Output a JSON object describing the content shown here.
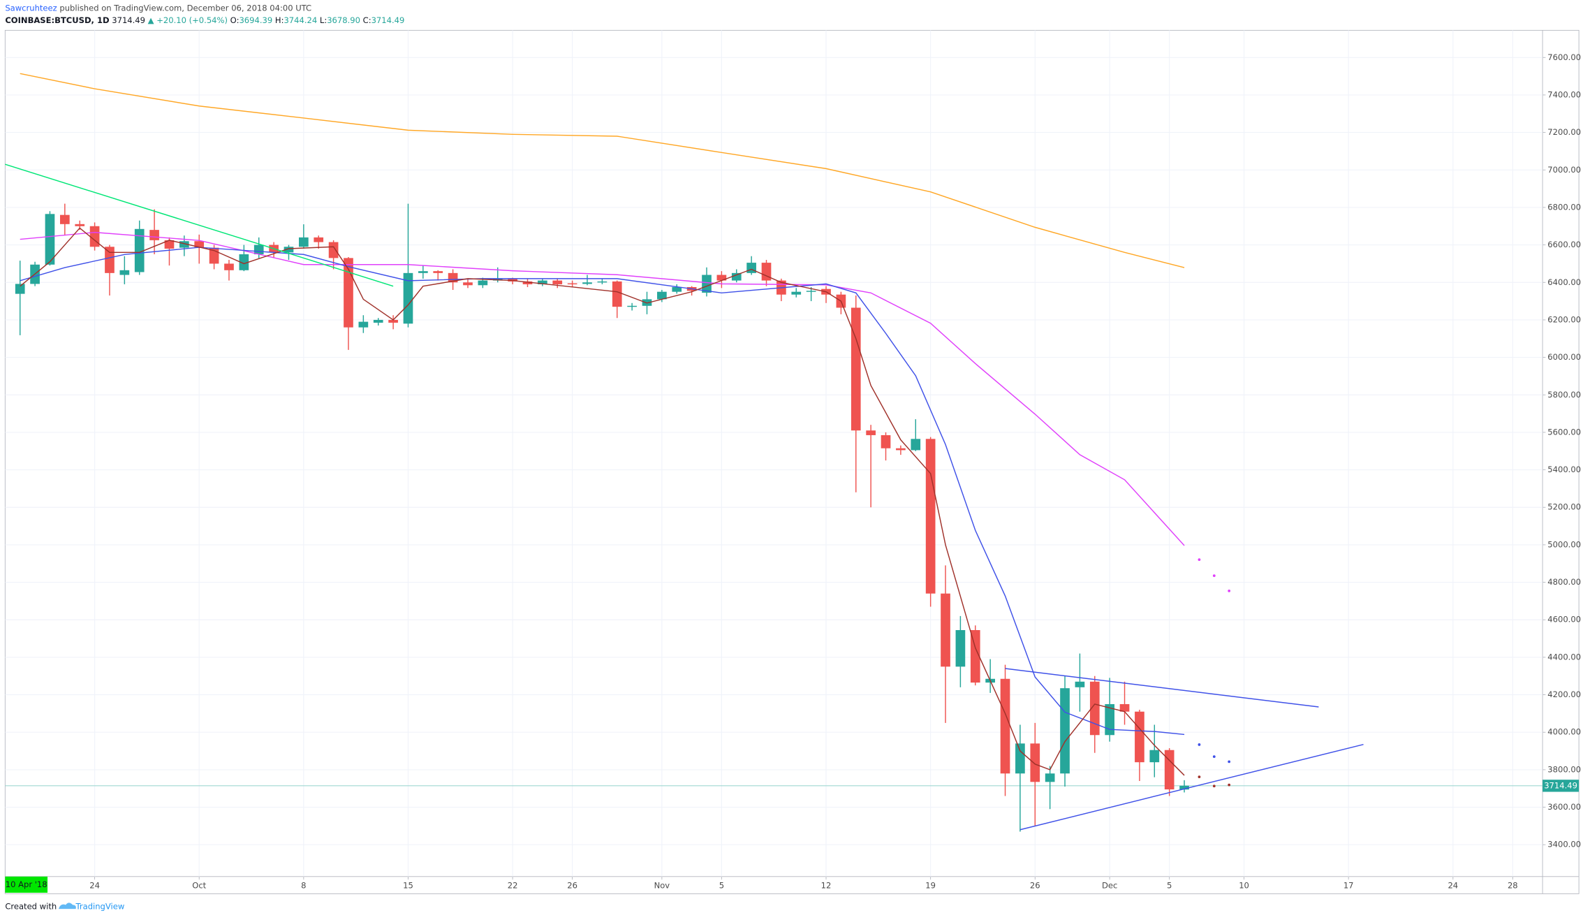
{
  "header": {
    "author": "Sawcruhteez",
    "published": "published on TradingView.com, December 06, 2018 04:00 UTC",
    "symbol": "COINBASE:BTCUSD, 1D",
    "last": "3714.49",
    "change": "▲ +20.10 (+0.54%)",
    "ohlc": [
      {
        "label": "O:",
        "value": "3694.39"
      },
      {
        "label": "H:",
        "value": "3744.24"
      },
      {
        "label": "L:",
        "value": "3678.90"
      },
      {
        "label": "C:",
        "value": "3714.49"
      }
    ]
  },
  "footer": {
    "created_with": "Created with",
    "brand": "TradingView"
  },
  "chart_data": {
    "type": "candlestick",
    "range_start_label": "10 Apr '18",
    "up_color": "#26a69a",
    "down_color": "#ef5350",
    "grid": true,
    "xlim": [
      "2018-09-18",
      "2018-12-30"
    ],
    "xticks": [
      {
        "value": "2018-09-24",
        "label": "24"
      },
      {
        "value": "2018-10-01",
        "label": "Oct"
      },
      {
        "value": "2018-10-08",
        "label": "8"
      },
      {
        "value": "2018-10-15",
        "label": "15"
      },
      {
        "value": "2018-10-22",
        "label": "22"
      },
      {
        "value": "2018-10-26",
        "label": "26"
      },
      {
        "value": "2018-11-01",
        "label": "Nov"
      },
      {
        "value": "2018-11-05",
        "label": "5"
      },
      {
        "value": "2018-11-12",
        "label": "12"
      },
      {
        "value": "2018-11-19",
        "label": "19"
      },
      {
        "value": "2018-11-26",
        "label": "26"
      },
      {
        "value": "2018-12-01",
        "label": "Dec"
      },
      {
        "value": "2018-12-05",
        "label": "5"
      },
      {
        "value": "2018-12-10",
        "label": "10"
      },
      {
        "value": "2018-12-17",
        "label": "17"
      },
      {
        "value": "2018-12-24",
        "label": "24"
      },
      {
        "value": "2018-12-28",
        "label": "28"
      }
    ],
    "ylim": [
      3230,
      7745
    ],
    "yticks": [
      {
        "value": 3400,
        "label": "3400.00"
      },
      {
        "value": 3600,
        "label": "3600.00"
      },
      {
        "value": 3800,
        "label": "3800.00"
      },
      {
        "value": 4000,
        "label": "4000.00"
      },
      {
        "value": 4200,
        "label": "4200.00"
      },
      {
        "value": 4400,
        "label": "4400.00"
      },
      {
        "value": 4600,
        "label": "4600.00"
      },
      {
        "value": 4800,
        "label": "4800.00"
      },
      {
        "value": 5000,
        "label": "5000.00"
      },
      {
        "value": 5200,
        "label": "5200.00"
      },
      {
        "value": 5400,
        "label": "5400.00"
      },
      {
        "value": 5600,
        "label": "5600.00"
      },
      {
        "value": 5800,
        "label": "5800.00"
      },
      {
        "value": 6000,
        "label": "6000.00"
      },
      {
        "value": 6200,
        "label": "6200.00"
      },
      {
        "value": 6400,
        "label": "6400.00"
      },
      {
        "value": 6600,
        "label": "6600.00"
      },
      {
        "value": 6800,
        "label": "6800.00"
      },
      {
        "value": 7000,
        "label": "7000.00"
      },
      {
        "value": 7200,
        "label": "7200.00"
      },
      {
        "value": 7400,
        "label": "7400.00"
      },
      {
        "value": 7600,
        "label": "7600.00"
      }
    ],
    "x": [
      "2018-09-19",
      "2018-09-20",
      "2018-09-21",
      "2018-09-22",
      "2018-09-23",
      "2018-09-24",
      "2018-09-25",
      "2018-09-26",
      "2018-09-27",
      "2018-09-28",
      "2018-09-29",
      "2018-09-30",
      "2018-10-01",
      "2018-10-02",
      "2018-10-03",
      "2018-10-04",
      "2018-10-05",
      "2018-10-06",
      "2018-10-07",
      "2018-10-08",
      "2018-10-09",
      "2018-10-10",
      "2018-10-11",
      "2018-10-12",
      "2018-10-13",
      "2018-10-14",
      "2018-10-15",
      "2018-10-16",
      "2018-10-17",
      "2018-10-18",
      "2018-10-19",
      "2018-10-20",
      "2018-10-21",
      "2018-10-22",
      "2018-10-23",
      "2018-10-24",
      "2018-10-25",
      "2018-10-26",
      "2018-10-27",
      "2018-10-28",
      "2018-10-29",
      "2018-10-30",
      "2018-10-31",
      "2018-11-01",
      "2018-11-02",
      "2018-11-03",
      "2018-11-04",
      "2018-11-05",
      "2018-11-06",
      "2018-11-07",
      "2018-11-08",
      "2018-11-09",
      "2018-11-10",
      "2018-11-11",
      "2018-11-12",
      "2018-11-13",
      "2018-11-14",
      "2018-11-15",
      "2018-11-16",
      "2018-11-17",
      "2018-11-18",
      "2018-11-19",
      "2018-11-20",
      "2018-11-21",
      "2018-11-22",
      "2018-11-23",
      "2018-11-24",
      "2018-11-25",
      "2018-11-26",
      "2018-11-27",
      "2018-11-28",
      "2018-11-29",
      "2018-11-30",
      "2018-12-01",
      "2018-12-02",
      "2018-12-03",
      "2018-12-04",
      "2018-12-05",
      "2018-12-06"
    ],
    "open": [
      6339,
      6392,
      6495,
      6760,
      6711,
      6700,
      6590,
      6440,
      6455,
      6680,
      6625,
      6585,
      6620,
      6585,
      6500,
      6465,
      6550,
      6600,
      6560,
      6590,
      6640,
      6615,
      6530,
      6160,
      6185,
      6200,
      6180,
      6450,
      6460,
      6450,
      6400,
      6385,
      6410,
      6420,
      6405,
      6390,
      6410,
      6395,
      6392,
      6400,
      6405,
      6270,
      6275,
      6310,
      6350,
      6375,
      6345,
      6440,
      6410,
      6450,
      6505,
      6410,
      6335,
      6350,
      6365,
      6335,
      6265,
      5610,
      5585,
      5515,
      5505,
      5565,
      4740,
      4350,
      4545,
      4265,
      4285,
      3780,
      3940,
      3735,
      3780,
      4240,
      4270,
      3985,
      4150,
      4110,
      3840,
      3905,
      3694.39
    ],
    "high": [
      6516,
      6510,
      6780,
      6820,
      6730,
      6720,
      6600,
      6540,
      6730,
      6790,
      6640,
      6650,
      6655,
      6600,
      6520,
      6600,
      6640,
      6615,
      6600,
      6710,
      6650,
      6625,
      6535,
      6225,
      6210,
      6225,
      6820,
      6490,
      6465,
      6470,
      6420,
      6425,
      6480,
      6425,
      6420,
      6420,
      6420,
      6410,
      6440,
      6420,
      6410,
      6290,
      6350,
      6360,
      6390,
      6380,
      6480,
      6460,
      6470,
      6540,
      6520,
      6420,
      6370,
      6375,
      6380,
      6350,
      6330,
      5640,
      5600,
      5530,
      5670,
      5575,
      4890,
      4620,
      4570,
      4390,
      4360,
      4040,
      4050,
      3820,
      4300,
      4420,
      4300,
      4290,
      4270,
      4120,
      4040,
      3915,
      3744.24
    ],
    "low": [
      6118,
      6380,
      6490,
      6650,
      6680,
      6570,
      6330,
      6390,
      6440,
      6550,
      6490,
      6540,
      6500,
      6470,
      6410,
      6460,
      6530,
      6530,
      6520,
      6580,
      6580,
      6470,
      6040,
      6130,
      6170,
      6150,
      6160,
      6420,
      6410,
      6360,
      6370,
      6370,
      6400,
      6390,
      6375,
      6380,
      6370,
      6375,
      6385,
      6390,
      6210,
      6250,
      6230,
      6295,
      6340,
      6330,
      6325,
      6370,
      6400,
      6440,
      6380,
      6300,
      6320,
      6300,
      6290,
      6230,
      5280,
      5200,
      5450,
      5480,
      5500,
      4670,
      4050,
      4240,
      4250,
      4210,
      3660,
      3470,
      3500,
      3590,
      3710,
      4110,
      3890,
      3950,
      4040,
      3740,
      3760,
      3660,
      3678.9
    ],
    "close": [
      6392,
      6495,
      6765,
      6711,
      6700,
      6590,
      6450,
      6465,
      6685,
      6625,
      6580,
      6620,
      6585,
      6500,
      6465,
      6550,
      6600,
      6560,
      6590,
      6640,
      6615,
      6530,
      6160,
      6190,
      6200,
      6185,
      6450,
      6460,
      6450,
      6400,
      6385,
      6410,
      6420,
      6405,
      6390,
      6410,
      6390,
      6390,
      6400,
      6405,
      6270,
      6275,
      6310,
      6350,
      6375,
      6355,
      6440,
      6410,
      6450,
      6505,
      6410,
      6335,
      6350,
      6355,
      6335,
      6265,
      5610,
      5585,
      5515,
      5505,
      5565,
      4740,
      4350,
      4545,
      4265,
      4285,
      3780,
      3940,
      3735,
      3780,
      4235,
      4270,
      3985,
      4150,
      4110,
      3840,
      3905,
      3695,
      3714.49
    ],
    "overlays": [
      {
        "style": "line",
        "color": "#ffa726",
        "x": [
          "2018-09-19",
          "2018-09-24",
          "2018-10-01",
          "2018-10-08",
          "2018-10-15",
          "2018-10-22",
          "2018-10-29",
          "2018-11-05",
          "2018-11-12",
          "2018-11-19",
          "2018-11-26",
          "2018-12-02",
          "2018-12-06"
        ],
        "values": [
          7514,
          7433,
          7341,
          7277,
          7212,
          7190,
          7180,
          7093,
          7007,
          6883,
          6694,
          6560,
          6479
        ]
      },
      {
        "style": "line",
        "color": "#e040fb",
        "x": [
          "2018-09-19",
          "2018-09-24",
          "2018-10-01",
          "2018-10-08",
          "2018-10-15",
          "2018-10-22",
          "2018-10-29",
          "2018-11-05",
          "2018-11-12",
          "2018-11-15",
          "2018-11-19",
          "2018-11-22",
          "2018-11-26",
          "2018-11-29",
          "2018-12-02",
          "2018-12-06"
        ],
        "values": [
          6630,
          6667,
          6624,
          6495,
          6495,
          6462,
          6441,
          6392,
          6387,
          6344,
          6182,
          5967,
          5697,
          5481,
          5347,
          4996
        ]
      },
      {
        "style": "line",
        "color": "#3f51e8",
        "x": [
          "2018-09-19",
          "2018-09-22",
          "2018-09-26",
          "2018-10-01",
          "2018-10-08",
          "2018-10-11",
          "2018-10-15",
          "2018-10-20",
          "2018-10-29",
          "2018-11-05",
          "2018-11-12",
          "2018-11-14",
          "2018-11-16",
          "2018-11-18",
          "2018-11-20",
          "2018-11-22",
          "2018-11-24",
          "2018-11-26",
          "2018-11-28",
          "2018-12-01",
          "2018-12-04",
          "2018-12-06"
        ],
        "values": [
          6409,
          6479,
          6549,
          6587,
          6549,
          6484,
          6409,
          6420,
          6420,
          6344,
          6392,
          6344,
          6128,
          5902,
          5535,
          5077,
          4727,
          4295,
          4107,
          4015,
          4004,
          3988
        ]
      },
      {
        "style": "line",
        "color": "#a0312a",
        "x": [
          "2018-09-19",
          "2018-09-21",
          "2018-09-23",
          "2018-09-25",
          "2018-09-27",
          "2018-09-29",
          "2018-10-02",
          "2018-10-04",
          "2018-10-07",
          "2018-10-10",
          "2018-10-11",
          "2018-10-12",
          "2018-10-14",
          "2018-10-15",
          "2018-10-16",
          "2018-10-19",
          "2018-10-22",
          "2018-10-29",
          "2018-10-31",
          "2018-11-03",
          "2018-11-07",
          "2018-11-09",
          "2018-11-12",
          "2018-11-13",
          "2018-11-14",
          "2018-11-15",
          "2018-11-17",
          "2018-11-19",
          "2018-11-20",
          "2018-11-22",
          "2018-11-24",
          "2018-11-25",
          "2018-11-26",
          "2018-11-27",
          "2018-11-28",
          "2018-11-30",
          "2018-12-02",
          "2018-12-04",
          "2018-12-06"
        ],
        "values": [
          6380,
          6510,
          6690,
          6560,
          6560,
          6625,
          6570,
          6500,
          6580,
          6590,
          6470,
          6310,
          6200,
          6280,
          6380,
          6420,
          6410,
          6350,
          6290,
          6350,
          6470,
          6400,
          6350,
          6300,
          6100,
          5850,
          5560,
          5380,
          5000,
          4450,
          4100,
          3900,
          3830,
          3800,
          3950,
          4150,
          4110,
          3930,
          3770
        ]
      },
      {
        "style": "line",
        "color": "#00e676",
        "x": [
          "2018-09-18",
          "2018-10-14"
        ],
        "values": [
          7030,
          6380
        ]
      },
      {
        "style": "line",
        "color": "#3f51e8",
        "x": [
          "2018-11-24",
          "2018-12-15"
        ],
        "values": [
          4340,
          4135
        ]
      },
      {
        "style": "line",
        "color": "#3f51e8",
        "x": [
          "2018-11-25",
          "2018-12-18"
        ],
        "values": [
          3480,
          3935
        ]
      },
      {
        "style": "dots",
        "color": "#e040fb",
        "x": [
          "2018-12-07",
          "2018-12-08",
          "2018-12-09"
        ],
        "values": [
          4921,
          4835,
          4754
        ]
      },
      {
        "style": "dots",
        "color": "#3f51e8",
        "x": [
          "2018-12-07",
          "2018-12-08",
          "2018-12-09"
        ],
        "values": [
          3934,
          3870,
          3843
        ]
      },
      {
        "style": "dots",
        "color": "#a0312a",
        "x": [
          "2018-12-07",
          "2018-12-08",
          "2018-12-09"
        ],
        "values": [
          3762,
          3713,
          3719
        ]
      }
    ]
  }
}
